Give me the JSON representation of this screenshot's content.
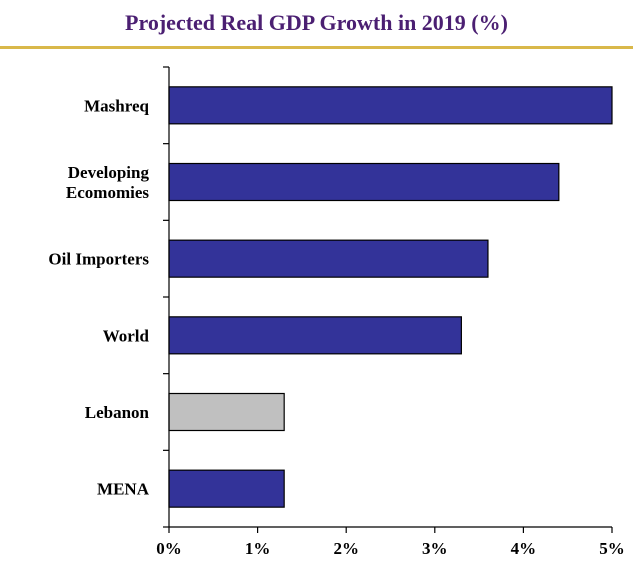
{
  "title": "Projected Real GDP Growth in 2019 (%)",
  "colors": {
    "title_text": "#4b1f72",
    "title_rule": "#d9b84a",
    "bar_default": "#333399",
    "bar_highlight": "#c0c0c0",
    "bar_stroke": "#000000"
  },
  "chart_data": {
    "type": "bar",
    "orientation": "horizontal",
    "title": "Projected Real GDP Growth in 2019 (%)",
    "xlabel": "",
    "ylabel": "",
    "categories": [
      "Mashreq",
      "Developing Ecomomies",
      "Oil Importers",
      "World",
      "Lebanon",
      "MENA"
    ],
    "category_lines": [
      [
        "Mashreq"
      ],
      [
        "Developing",
        "Ecomomies"
      ],
      [
        "Oil Importers"
      ],
      [
        "World"
      ],
      [
        "Lebanon"
      ],
      [
        "MENA"
      ]
    ],
    "values": [
      5.0,
      4.4,
      3.6,
      3.3,
      1.3,
      1.3
    ],
    "highlight": [
      "Lebanon"
    ],
    "xlim": [
      0,
      5
    ],
    "xticks": [
      0,
      1,
      2,
      3,
      4,
      5
    ],
    "xtick_labels": [
      "0%",
      "1%",
      "2%",
      "3%",
      "4%",
      "5%"
    ],
    "grid": false,
    "legend": "none"
  }
}
